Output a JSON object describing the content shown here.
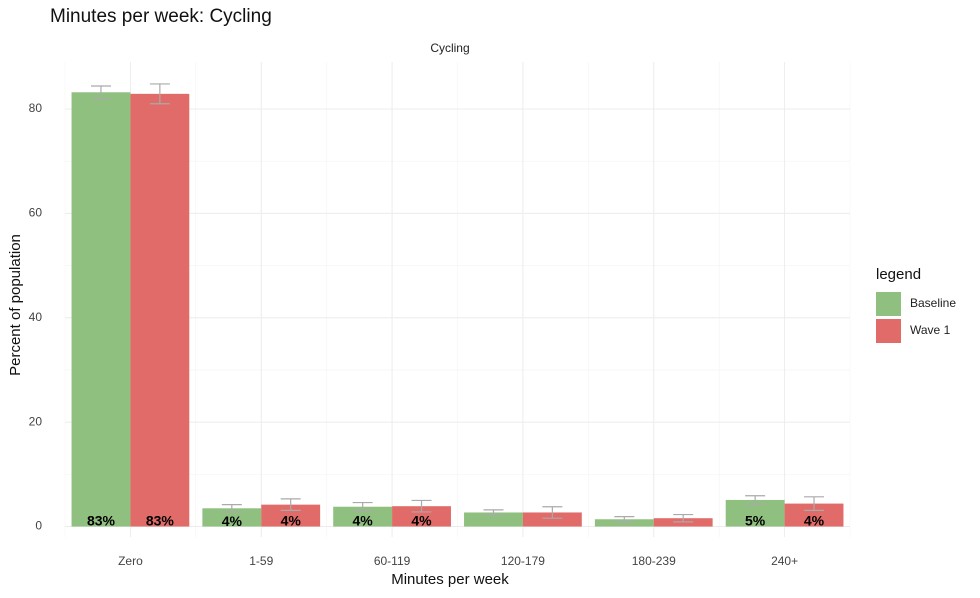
{
  "chart_data": {
    "type": "bar",
    "title": "Minutes per week: Cycling",
    "facet_label": "Cycling",
    "x_label": "Minutes per week",
    "y_label": "Percent of population",
    "legend_title": "legend",
    "categories": [
      "Zero",
      "1-59",
      "60-119",
      "120-179",
      "180-239",
      "240+"
    ],
    "series": [
      {
        "name": "Baseline",
        "color": "#90c080",
        "values": [
          83.2,
          3.5,
          3.8,
          2.7,
          1.4,
          5.1
        ],
        "errors": [
          1.2,
          0.7,
          0.8,
          0.5,
          0.5,
          0.8
        ],
        "value_labels": [
          "83%",
          "4%",
          "4%",
          null,
          null,
          "5%"
        ]
      },
      {
        "name": "Wave 1",
        "color": "#e06b68",
        "values": [
          82.9,
          4.2,
          3.9,
          2.7,
          1.6,
          4.4
        ],
        "errors": [
          1.9,
          1.1,
          1.1,
          1.1,
          0.7,
          1.3
        ],
        "value_labels": [
          "83%",
          "4%",
          "4%",
          null,
          null,
          "4%"
        ]
      }
    ],
    "ylim": [
      -2,
      89
    ],
    "yticks": [
      0,
      20,
      40,
      60,
      80
    ],
    "grid": true
  }
}
